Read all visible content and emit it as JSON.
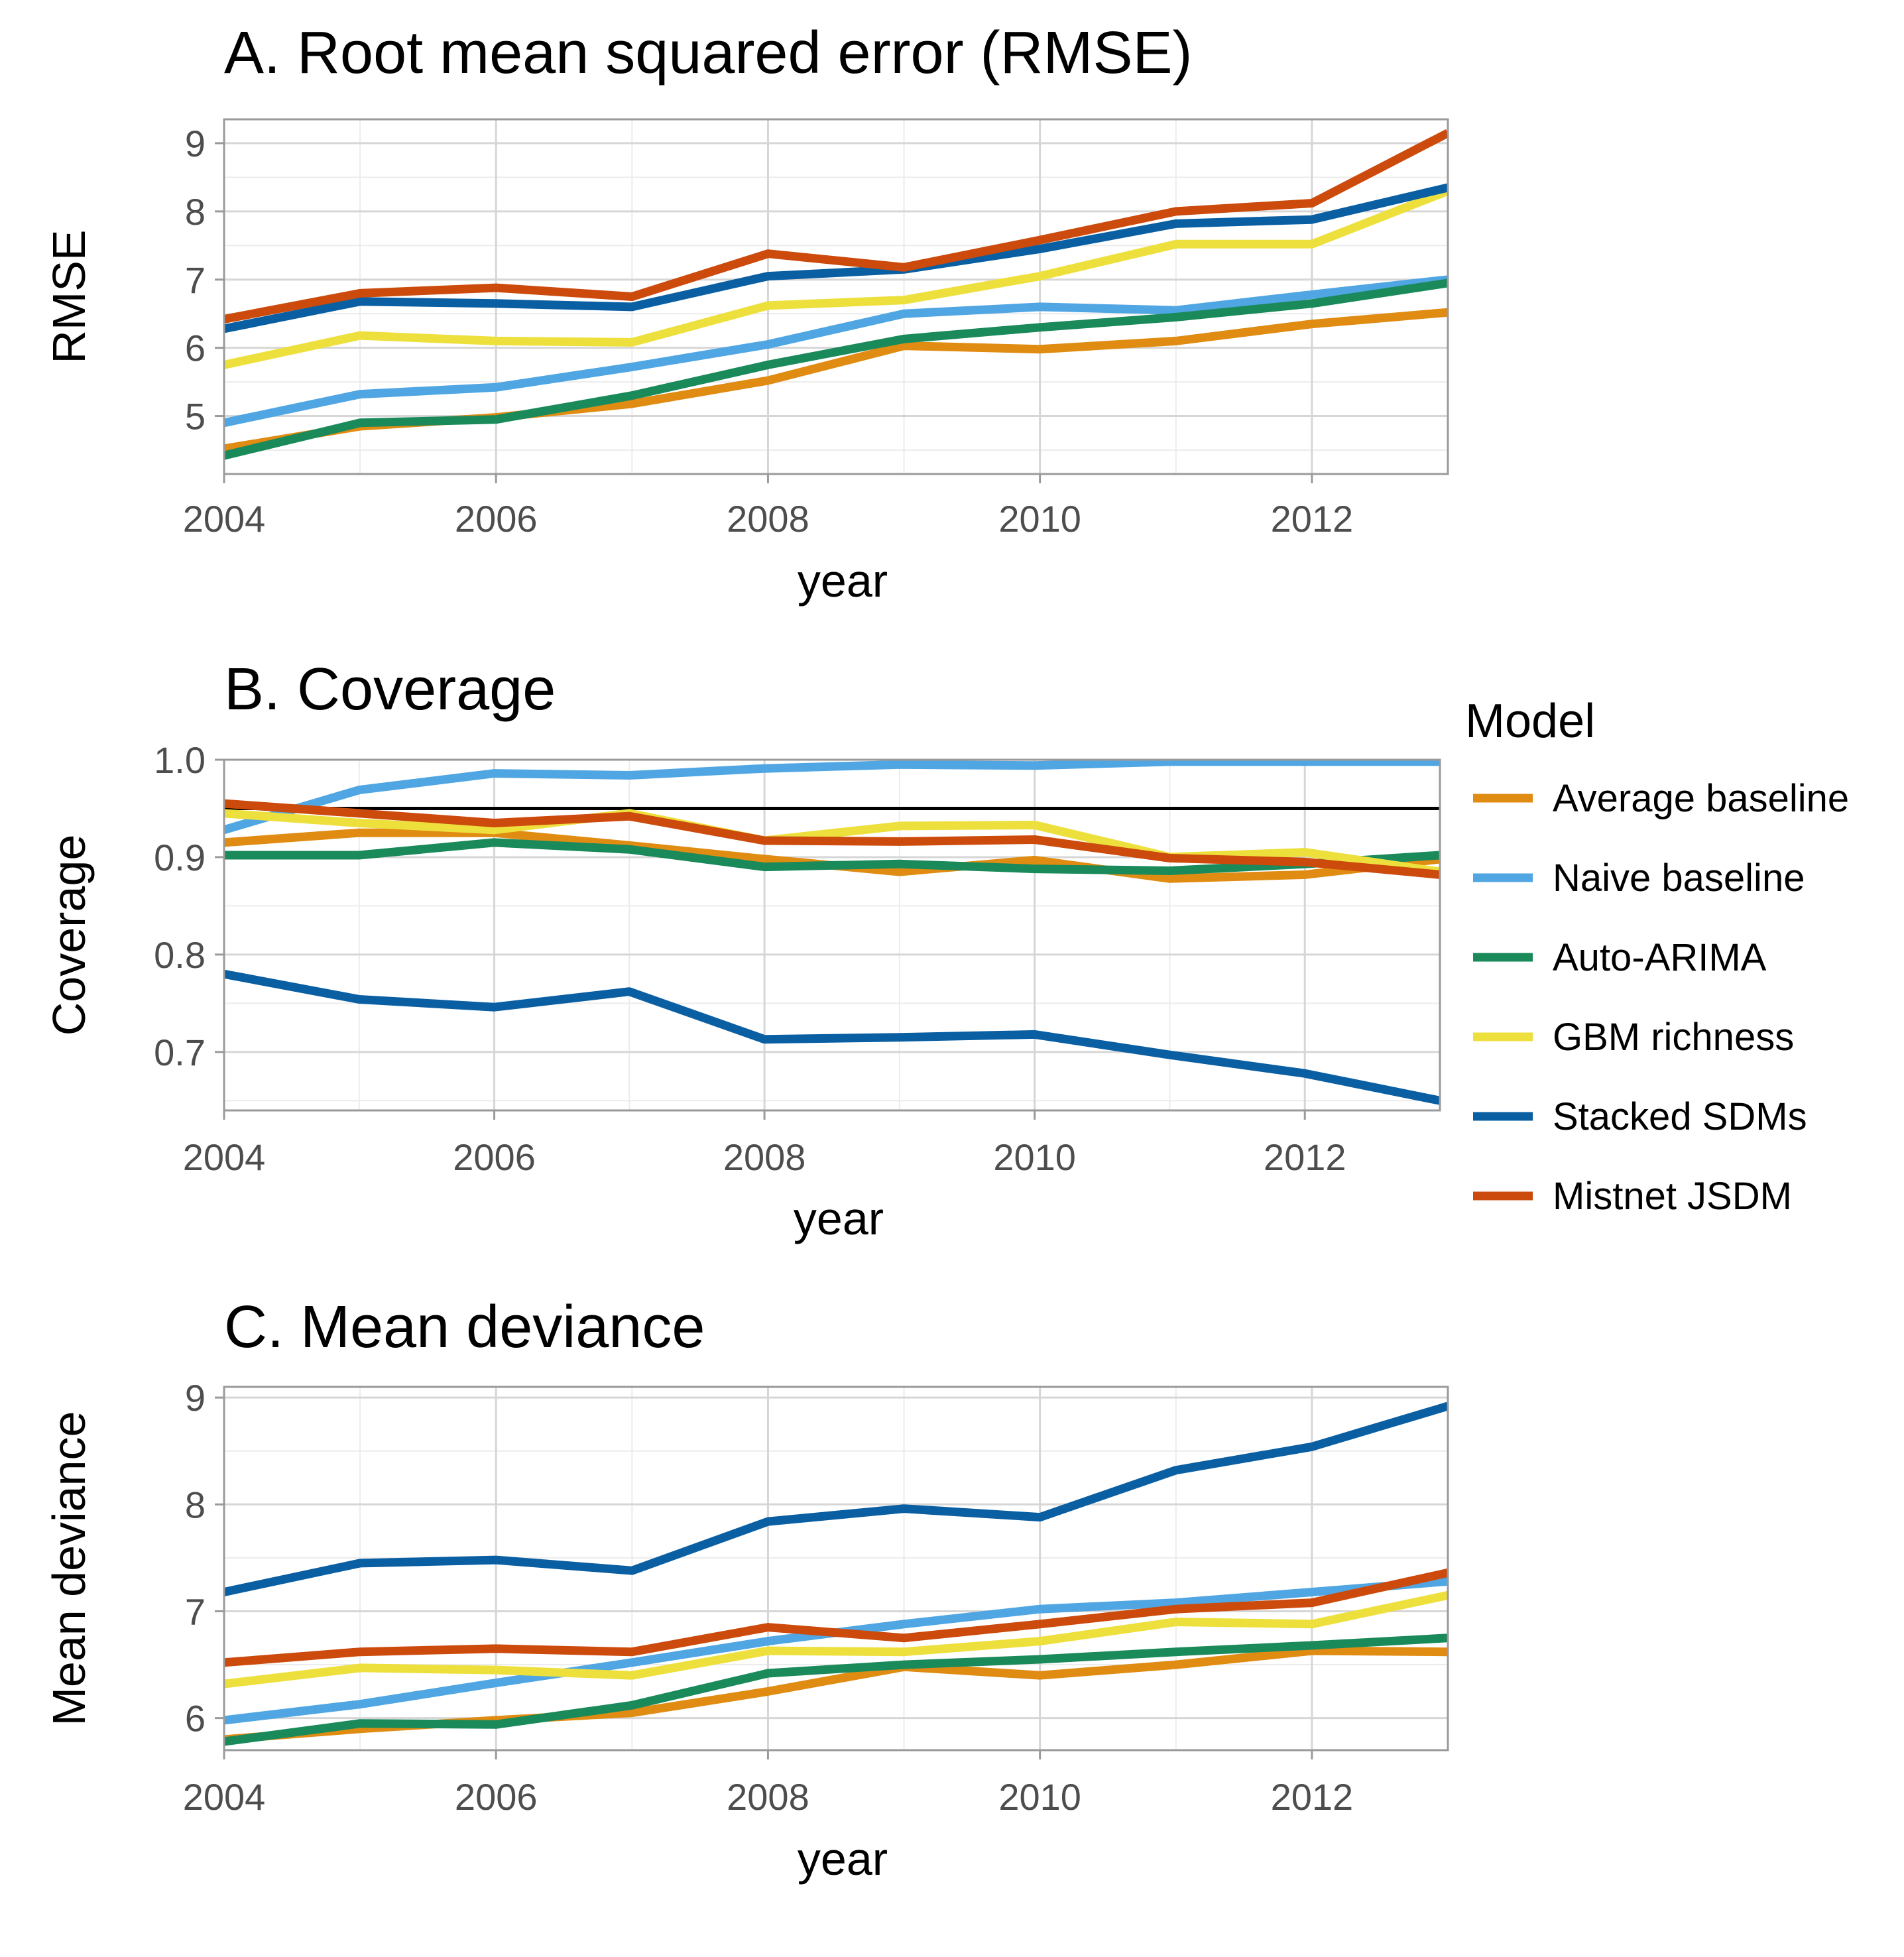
{
  "chart_data": [
    {
      "type": "line",
      "title": "A. Root mean squared error (RMSE)",
      "xlabel": "year",
      "ylabel": "RMSE",
      "x": [
        2004,
        2005,
        2006,
        2007,
        2008,
        2009,
        2010,
        2011,
        2012,
        2013
      ],
      "xlim": [
        2004,
        2013
      ],
      "ylim": [
        4.15,
        9.35
      ],
      "xticks": [
        2004,
        2006,
        2008,
        2010,
        2012
      ],
      "yticks": [
        5,
        6,
        7,
        8,
        9
      ],
      "grid": true,
      "series": [
        {
          "name": "Average baseline",
          "values": [
            4.52,
            4.85,
            4.98,
            5.18,
            5.52,
            6.03,
            5.98,
            6.1,
            6.35,
            6.52
          ]
        },
        {
          "name": "Naive baseline",
          "values": [
            4.9,
            5.32,
            5.42,
            5.72,
            6.05,
            6.5,
            6.6,
            6.55,
            6.78,
            7.0
          ]
        },
        {
          "name": "Auto-ARIMA",
          "values": [
            4.42,
            4.9,
            4.95,
            5.3,
            5.75,
            6.13,
            6.3,
            6.45,
            6.65,
            6.95
          ]
        },
        {
          "name": "GBM richness",
          "values": [
            5.75,
            6.18,
            6.1,
            6.08,
            6.62,
            6.7,
            7.05,
            7.52,
            7.52,
            8.3
          ]
        },
        {
          "name": "Stacked SDMs",
          "values": [
            6.28,
            6.68,
            6.65,
            6.6,
            7.05,
            7.15,
            7.45,
            7.82,
            7.88,
            8.35
          ]
        },
        {
          "name": "Mistnet JSDM",
          "values": [
            6.42,
            6.8,
            6.88,
            6.75,
            7.38,
            7.18,
            7.58,
            8.0,
            8.12,
            9.15
          ]
        }
      ]
    },
    {
      "type": "line",
      "title": "B. Coverage",
      "xlabel": "year",
      "ylabel": "Coverage",
      "x": [
        2004,
        2005,
        2006,
        2007,
        2008,
        2009,
        2010,
        2011,
        2012,
        2013
      ],
      "xlim": [
        2004,
        2013
      ],
      "ylim": [
        0.64,
        1.0
      ],
      "xticks": [
        2004,
        2006,
        2008,
        2010,
        2012
      ],
      "yticks": [
        0.7,
        0.8,
        0.9,
        1.0
      ],
      "ytick_labels": [
        "0.7",
        "0.8",
        "0.9",
        "1.0"
      ],
      "reference_line": 0.95,
      "grid": true,
      "series": [
        {
          "name": "Average baseline",
          "values": [
            0.915,
            0.925,
            0.925,
            0.912,
            0.898,
            0.885,
            0.897,
            0.878,
            0.882,
            0.898
          ]
        },
        {
          "name": "Naive baseline",
          "values": [
            0.928,
            0.969,
            0.986,
            0.984,
            0.991,
            0.995,
            0.994,
            0.998,
            0.998,
            0.998
          ]
        },
        {
          "name": "Auto-ARIMA",
          "values": [
            0.902,
            0.902,
            0.915,
            0.908,
            0.89,
            0.893,
            0.888,
            0.886,
            0.893,
            0.902
          ]
        },
        {
          "name": "GBM richness",
          "values": [
            0.945,
            0.935,
            0.928,
            0.945,
            0.917,
            0.932,
            0.933,
            0.9,
            0.905,
            0.885
          ]
        },
        {
          "name": "Stacked SDMs",
          "values": [
            0.78,
            0.754,
            0.746,
            0.762,
            0.713,
            0.715,
            0.718,
            0.697,
            0.678,
            0.65
          ]
        },
        {
          "name": "Mistnet JSDM",
          "values": [
            0.955,
            0.945,
            0.935,
            0.942,
            0.917,
            0.916,
            0.918,
            0.899,
            0.895,
            0.882
          ]
        }
      ]
    },
    {
      "type": "line",
      "title": "C. Mean deviance",
      "xlabel": "year",
      "ylabel": "Mean deviance",
      "x": [
        2004,
        2005,
        2006,
        2007,
        2008,
        2009,
        2010,
        2011,
        2012,
        2013
      ],
      "xlim": [
        2004,
        2013
      ],
      "ylim": [
        5.7,
        9.1
      ],
      "xticks": [
        2004,
        2006,
        2008,
        2010,
        2012
      ],
      "yticks": [
        6,
        7,
        8,
        9
      ],
      "grid": true,
      "series": [
        {
          "name": "Average baseline",
          "values": [
            5.8,
            5.9,
            5.98,
            6.05,
            6.25,
            6.48,
            6.4,
            6.5,
            6.63,
            6.62
          ]
        },
        {
          "name": "Naive baseline",
          "values": [
            5.98,
            6.13,
            6.33,
            6.52,
            6.72,
            6.88,
            7.02,
            7.08,
            7.18,
            7.28
          ]
        },
        {
          "name": "Auto-ARIMA",
          "values": [
            5.78,
            5.95,
            5.94,
            6.12,
            6.42,
            6.5,
            6.55,
            6.62,
            6.68,
            6.75
          ]
        },
        {
          "name": "GBM richness",
          "values": [
            6.32,
            6.47,
            6.45,
            6.4,
            6.63,
            6.62,
            6.72,
            6.9,
            6.88,
            7.15
          ]
        },
        {
          "name": "Stacked SDMs",
          "values": [
            7.18,
            7.45,
            7.48,
            7.38,
            7.84,
            7.96,
            7.88,
            8.32,
            8.54,
            8.92
          ]
        },
        {
          "name": "Mistnet JSDM",
          "values": [
            6.52,
            6.62,
            6.65,
            6.62,
            6.85,
            6.75,
            6.88,
            7.02,
            7.08,
            7.36
          ]
        }
      ]
    }
  ],
  "legend": {
    "title": "Model",
    "placement": "right",
    "items": [
      {
        "label": "Average baseline",
        "color": "#E08B11"
      },
      {
        "label": "Naive baseline",
        "color": "#4FA6E3"
      },
      {
        "label": "Auto-ARIMA",
        "color": "#1A8A5B"
      },
      {
        "label": "GBM richness",
        "color": "#EDE03D"
      },
      {
        "label": "Stacked SDMs",
        "color": "#0A5FA3"
      },
      {
        "label": "Mistnet JSDM",
        "color": "#CC4A0C"
      }
    ]
  }
}
